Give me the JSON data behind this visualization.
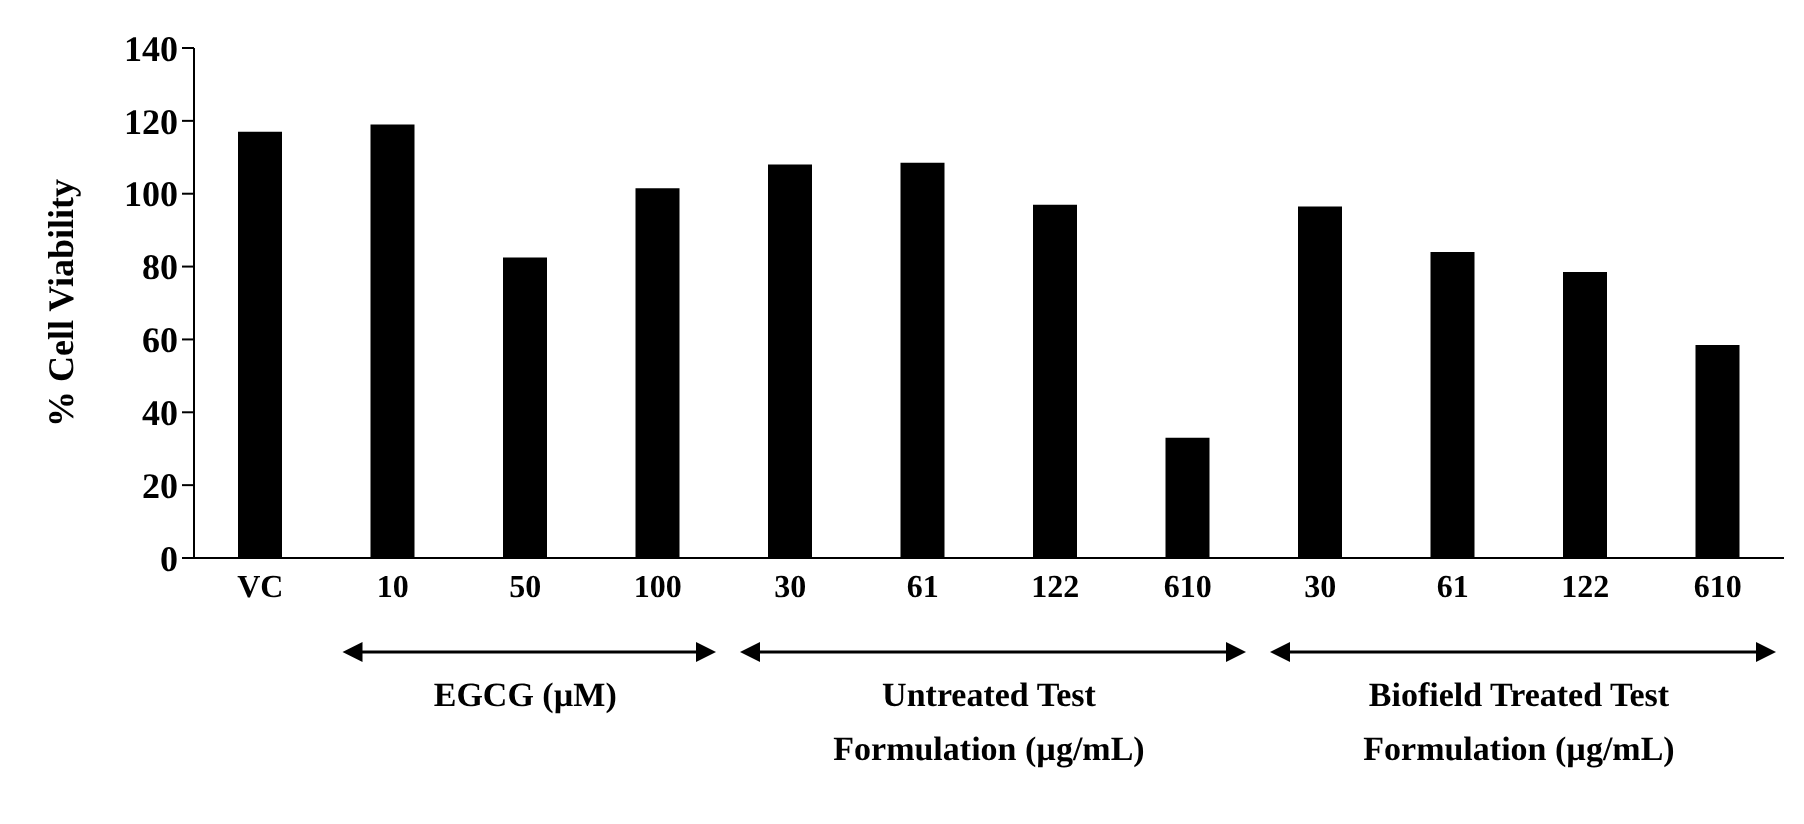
{
  "chart_data": {
    "type": "bar",
    "ylabel": "% Cell Viability",
    "categories": [
      "VC",
      "10",
      "50",
      "100",
      "30",
      "61",
      "122",
      "610",
      "30",
      "61",
      "122",
      "610"
    ],
    "values": [
      117,
      119,
      82.5,
      101.5,
      108,
      108.5,
      97,
      33,
      96.5,
      84,
      78.5,
      58.5
    ],
    "color": "#000000",
    "ylim": [
      0,
      140
    ],
    "yticks": [
      0,
      20,
      40,
      60,
      80,
      100,
      120,
      140
    ],
    "grid": false,
    "legend": false,
    "annotations": [
      "EGCG (µM)",
      "Untreated Test Formulation (µg/mL)",
      "Biofield Treated Test Formulation (µg/mL)"
    ]
  }
}
